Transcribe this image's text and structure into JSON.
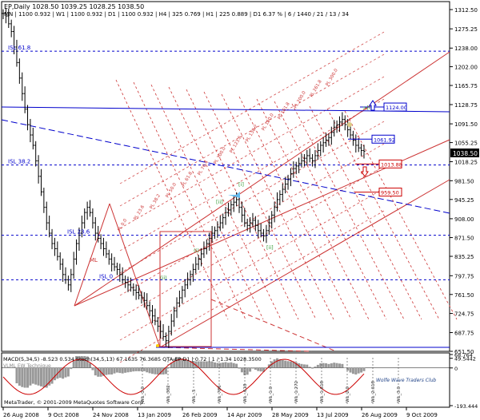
{
  "header": {
    "symbol_line": "EP,Daily  1028.50 1039.25 1028.25 1038.50",
    "stats_line": "MN | 1100  0.932 | W1 | 1100  0.932 | D1 | 1100  0.932 | H4 | 325  0.769 | H1 | 225  0.889 | D1  6.37 % | 6 / 1440 / 21 / 13 / 34"
  },
  "copyright": "MetaTrader, © 2001-2009 MetaQuotes Software Corp.",
  "watermark": "Wolfe Wave Traders Club",
  "chart_data": [
    {
      "type": "line",
      "name": "price-chart",
      "title": "EP,Daily",
      "y_ticks": [
        1312.5,
        1275.25,
        1238.0,
        1202.0,
        1165.75,
        1128.75,
        1091.5,
        1055.25,
        1018.25,
        981.5,
        945.25,
        908.0,
        871.5,
        835.25,
        797.75,
        761.5,
        724.75,
        687.75,
        651.5
      ],
      "ylim": [
        651.5,
        1312.5
      ],
      "x_labels": [
        "26 Aug 2008",
        "9 Oct 2008",
        "24 Nov 2008",
        "13 Jan 2009",
        "26 Feb 2009",
        "14 Apr 2009",
        "28 May 2009",
        "13 Jul 2009",
        "26 Aug 2009",
        "9 Oct 2009"
      ],
      "current_price": 1038.5,
      "isl_levels": [
        {
          "label": "ISL 61.8",
          "value": 1232.0
        },
        {
          "label": "ISL 38.2",
          "value": 1012.0
        },
        {
          "label": "ISL 23.6",
          "value": 876.0
        },
        {
          "label": "ISL 0",
          "value": 790.0
        }
      ],
      "price_boxes": [
        {
          "label": "1124.00",
          "value": 1124.0,
          "color": "#0000cc"
        },
        {
          "label": "1061.92",
          "value": 1061.9,
          "color": "#0000cc"
        },
        {
          "label": "1013.88",
          "value": 1013.9,
          "color": "#cc0000"
        },
        {
          "label": "959.50",
          "value": 959.5,
          "color": "#cc0000"
        }
      ],
      "level_labels": [
        "0.0",
        "23.6",
        "38.2",
        "50.0",
        "61.8",
        "76.4",
        "100.0",
        "123.6",
        "138.2",
        "150.0",
        "161.8",
        "200.0",
        "261.8",
        "300.0"
      ],
      "markers": [
        "[i]",
        "[ii]",
        "[ii]",
        "(ii)",
        "(i)",
        ">[c]"
      ],
      "ml_label": "ML",
      "closes": [
        1305,
        1300,
        1285,
        1270,
        1240,
        1210,
        1180,
        1150,
        1120,
        1090,
        1070,
        1050,
        1020,
        990,
        960,
        930,
        900,
        880,
        860,
        850,
        835,
        820,
        800,
        790,
        780,
        800,
        830,
        860,
        880,
        900,
        920,
        930,
        920,
        900,
        880,
        870,
        860,
        850,
        840,
        830,
        820,
        815,
        810,
        800,
        790,
        785,
        780,
        775,
        770,
        765,
        760,
        755,
        750,
        740,
        730,
        720,
        710,
        700,
        690,
        680,
        672,
        690,
        710,
        730,
        745,
        755,
        770,
        780,
        790,
        800,
        810,
        820,
        830,
        840,
        850,
        860,
        870,
        880,
        885,
        892,
        900,
        910,
        920,
        925,
        935,
        940,
        945,
        930,
        915,
        900,
        895,
        900,
        905,
        895,
        885,
        880,
        875,
        885,
        900,
        915,
        930,
        945,
        955,
        965,
        975,
        985,
        995,
        1005,
        1010,
        1015,
        1020,
        1025,
        1030,
        1025,
        1020,
        1030,
        1040,
        1050,
        1055,
        1060,
        1065,
        1075,
        1085,
        1090,
        1095,
        1100,
        1090,
        1080,
        1070,
        1060,
        1050,
        1045,
        1040,
        1038.5
      ]
    },
    {
      "type": "line",
      "name": "indicator-panel",
      "title": "MACD(5,34,5) -8.523 0.534  Stoch(34,5,13) 67.1635 76.3685  QTA EP D1 | 0.72 | 1 / 1.34 1028.3500",
      "subtitle": "VLML EW Technique",
      "y_ticks": [
        68.764,
        49.5442,
        0.0,
        -193.444
      ],
      "wave_labels": [
        "WL_1.0",
        "WL_382",
        "WL_.5",
        "WL_786",
        "WL_.618",
        "WL_1.0",
        "WL_1.272",
        "WL_1.618",
        "WL_2.0",
        "WL_2.618",
        "WL_3.0"
      ]
    }
  ]
}
